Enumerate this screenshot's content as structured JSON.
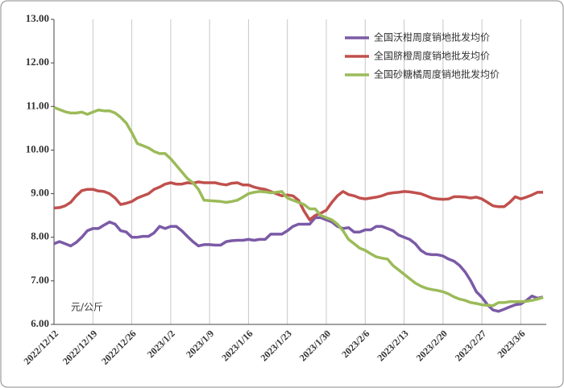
{
  "chart_data": {
    "type": "line",
    "y_axis_annotation": "元/公斤",
    "categories": [
      "2022/12/12",
      null,
      null,
      null,
      null,
      null,
      null,
      "2022/12/19",
      null,
      null,
      null,
      null,
      null,
      null,
      "2022/12/26",
      null,
      null,
      null,
      null,
      null,
      null,
      "2023/1/2",
      null,
      null,
      null,
      null,
      null,
      null,
      "2023/1/9",
      null,
      null,
      null,
      null,
      null,
      null,
      "2023/1/16",
      null,
      null,
      null,
      null,
      null,
      null,
      "2023/1/23",
      null,
      null,
      null,
      null,
      null,
      null,
      "2023/1/30",
      null,
      null,
      null,
      null,
      null,
      null,
      "2023/2/6",
      null,
      null,
      null,
      null,
      null,
      null,
      "2023/2/13",
      null,
      null,
      null,
      null,
      null,
      null,
      "2023/2/20",
      null,
      null,
      null,
      null,
      null,
      null,
      "2023/2/27",
      null,
      null,
      null,
      null,
      null,
      null,
      "2023/3/6",
      null,
      null,
      null,
      null
    ],
    "series": [
      {
        "name": "全国沃柑周度销地批发均价",
        "color": "#7b5aa6",
        "values": [
          7.85,
          7.9,
          7.85,
          7.8,
          7.88,
          8.0,
          8.15,
          8.2,
          8.2,
          8.28,
          8.35,
          8.3,
          8.15,
          8.12,
          8.0,
          8.0,
          8.02,
          8.02,
          8.1,
          8.25,
          8.2,
          8.25,
          8.25,
          8.15,
          8.02,
          7.9,
          7.8,
          7.83,
          7.83,
          7.82,
          7.82,
          7.9,
          7.92,
          7.93,
          7.93,
          7.95,
          7.93,
          7.95,
          7.95,
          8.07,
          8.07,
          8.07,
          8.15,
          8.25,
          8.3,
          8.3,
          8.3,
          8.45,
          8.45,
          8.4,
          8.35,
          8.25,
          8.2,
          8.22,
          8.12,
          8.12,
          8.17,
          8.17,
          8.25,
          8.25,
          8.2,
          8.15,
          8.05,
          8.0,
          7.95,
          7.85,
          7.7,
          7.62,
          7.6,
          7.6,
          7.57,
          7.5,
          7.45,
          7.35,
          7.2,
          7.0,
          6.75,
          6.62,
          6.45,
          6.33,
          6.3,
          6.35,
          6.4,
          6.45,
          6.47,
          6.55,
          6.65,
          6.6,
          6.63
        ]
      },
      {
        "name": "全国脐橙周度销地批发均价",
        "color": "#c0504d",
        "values": [
          8.67,
          8.68,
          8.72,
          8.8,
          8.95,
          9.07,
          9.1,
          9.1,
          9.06,
          9.05,
          9.0,
          8.9,
          8.75,
          8.78,
          8.82,
          8.9,
          8.95,
          9.0,
          9.1,
          9.15,
          9.22,
          9.25,
          9.22,
          9.22,
          9.25,
          9.24,
          9.27,
          9.25,
          9.25,
          9.25,
          9.22,
          9.2,
          9.24,
          9.25,
          9.2,
          9.2,
          9.15,
          9.12,
          9.1,
          9.05,
          9.0,
          8.95,
          8.97,
          8.95,
          8.85,
          8.6,
          8.4,
          8.5,
          8.55,
          8.62,
          8.8,
          8.95,
          9.05,
          8.98,
          8.95,
          8.9,
          8.88,
          8.9,
          8.92,
          8.95,
          9.0,
          9.02,
          9.03,
          9.05,
          9.04,
          9.02,
          9.0,
          8.95,
          8.9,
          8.88,
          8.87,
          8.88,
          8.93,
          8.93,
          8.92,
          8.9,
          8.92,
          8.88,
          8.8,
          8.72,
          8.7,
          8.7,
          8.8,
          8.93,
          8.88,
          8.92,
          8.97,
          9.03,
          9.03
        ]
      },
      {
        "name": "全国砂糖橘周度销地批发均价",
        "color": "#9bbb59",
        "values": [
          10.98,
          10.93,
          10.88,
          10.85,
          10.85,
          10.87,
          10.82,
          10.87,
          10.92,
          10.9,
          10.9,
          10.85,
          10.75,
          10.62,
          10.4,
          10.15,
          10.1,
          10.05,
          9.97,
          9.92,
          9.92,
          9.8,
          9.65,
          9.5,
          9.35,
          9.25,
          9.1,
          8.85,
          8.84,
          8.83,
          8.82,
          8.8,
          8.82,
          8.85,
          8.92,
          9.0,
          9.03,
          9.05,
          9.04,
          9.02,
          9.03,
          9.05,
          8.9,
          8.85,
          8.8,
          8.75,
          8.65,
          8.65,
          8.5,
          8.45,
          8.4,
          8.3,
          8.15,
          7.95,
          7.85,
          7.75,
          7.7,
          7.62,
          7.55,
          7.52,
          7.5,
          7.35,
          7.25,
          7.15,
          7.05,
          6.95,
          6.88,
          6.83,
          6.8,
          6.78,
          6.75,
          6.7,
          6.63,
          6.58,
          6.55,
          6.5,
          6.48,
          6.45,
          6.44,
          6.43,
          6.5,
          6.5,
          6.52,
          6.52,
          6.52,
          6.53,
          6.55,
          6.58,
          6.62
        ]
      }
    ],
    "ylim": [
      6,
      13
    ],
    "yticks": [
      {
        "value": 6,
        "label": "6.00"
      },
      {
        "value": 7,
        "label": "7.00"
      },
      {
        "value": 8,
        "label": "8.00"
      },
      {
        "value": 9,
        "label": "9.00"
      },
      {
        "value": 10,
        "label": "10.00"
      },
      {
        "value": 11,
        "label": "11.00"
      },
      {
        "value": 12,
        "label": "12.00"
      },
      {
        "value": 13,
        "label": "13.00"
      }
    ],
    "vertical_grid": true,
    "legend": "upper right"
  }
}
